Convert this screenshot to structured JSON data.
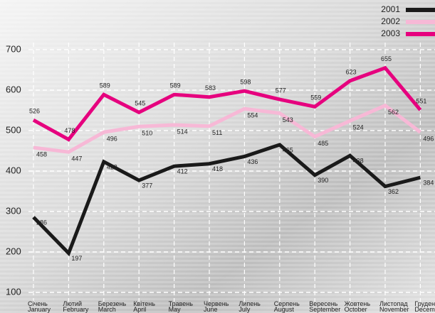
{
  "chart_data": {
    "type": "line",
    "categories": [
      [
        "Січень",
        "January"
      ],
      [
        "Лютий",
        "February"
      ],
      [
        "Березень",
        "March"
      ],
      [
        "Квітень",
        "April"
      ],
      [
        "Травень",
        "May"
      ],
      [
        "Червень",
        "June"
      ],
      [
        "Липень",
        "July"
      ],
      [
        "Серпень",
        "August"
      ],
      [
        "Вересень",
        "September"
      ],
      [
        "Жовтень",
        "October"
      ],
      [
        "Листопад",
        "November"
      ],
      [
        "Грудень",
        "December"
      ]
    ],
    "series": [
      {
        "name": "2001",
        "color": "#1a1a1a",
        "values": [
          286,
          197,
          423,
          377,
          412,
          418,
          436,
          465,
          390,
          438,
          362,
          384
        ]
      },
      {
        "name": "2002",
        "color": "#f7b8d6",
        "values": [
          458,
          447,
          496,
          510,
          514,
          511,
          554,
          543,
          485,
          524,
          562,
          496
        ]
      },
      {
        "name": "2003",
        "color": "#e6007e",
        "values": [
          526,
          478,
          589,
          545,
          589,
          583,
          598,
          577,
          559,
          623,
          655,
          551
        ]
      }
    ],
    "ylim": [
      75,
      780
    ],
    "yticks": [
      100,
      200,
      300,
      400,
      500,
      600,
      700
    ],
    "grid": true,
    "legend": "top-right"
  }
}
